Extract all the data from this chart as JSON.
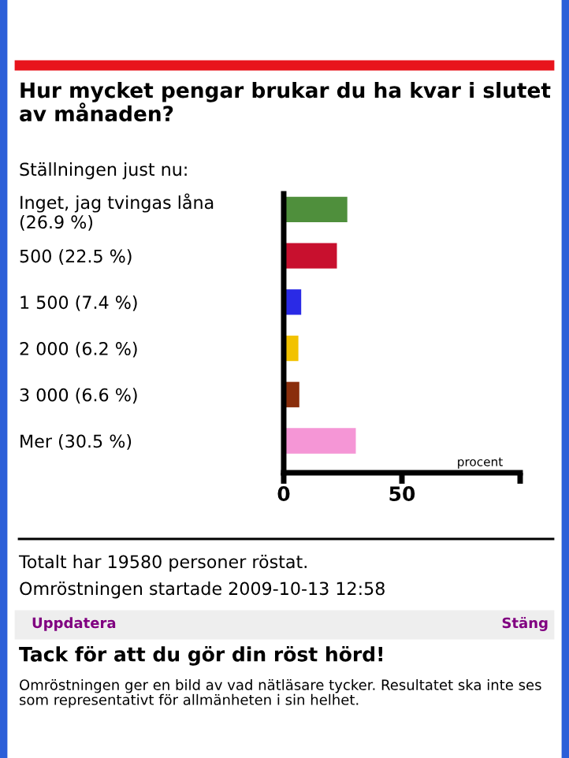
{
  "chart_data": {
    "type": "bar",
    "orientation": "horizontal",
    "title": "Hur mycket pengar brukar du ha kvar i slutet av månaden?",
    "subtitle": "Ställningen just nu:",
    "categories": [
      "Inget, jag tvingas låna (26.9 %)",
      "500 (22.5 %)",
      "1 500 (7.4 %)",
      "2 000 (6.2 %)",
      "3 000 (6.6 %)",
      "Mer (30.5 %)"
    ],
    "values": [
      26.9,
      22.5,
      7.4,
      6.2,
      6.6,
      30.5
    ],
    "colors": [
      "#4f8f3c",
      "#c8102e",
      "#2a2ae6",
      "#f2c200",
      "#8a2e0c",
      "#f596d6"
    ],
    "xlim": [
      0,
      100
    ],
    "xticks": [
      0,
      50,
      {
        "value": 100,
        "label": null
      }
    ],
    "xlabel": "procent",
    "grid": false,
    "legend": false,
    "annotations": [
      "Totalt har 19580 personer röstat.",
      "Omröstningen startade 2009-10-13 12:58",
      "Uppdatera",
      "Stäng",
      "Tack för att du gör din röst hörd!",
      "Omröstningen ger en bild av vad nätläsare tycker. Resultatet ska inte ses som representativt för allmänheten i sin helhet."
    ]
  }
}
